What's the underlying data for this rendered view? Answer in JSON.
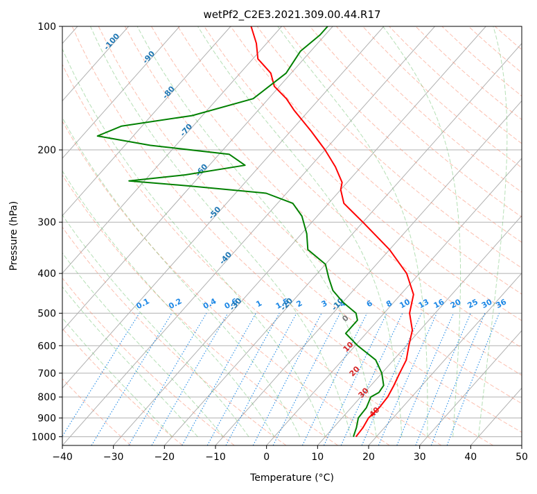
{
  "chart_data": {
    "type": "line",
    "subtype": "skew-T log-P diagram",
    "title": "wetPf2_C2E3.2021.309.00.44.R17",
    "xlabel": "Temperature (°C)",
    "ylabel": "Pressure (hPa)",
    "xlim": [
      -40,
      50
    ],
    "ylim": [
      1050,
      100
    ],
    "y_scale": "log",
    "x_ticks": [
      "−40",
      "−30",
      "−20",
      "−10",
      "0",
      "10",
      "20",
      "30",
      "40",
      "50"
    ],
    "y_ticks": [
      "1000",
      "900",
      "800",
      "700",
      "600",
      "500",
      "400",
      "300",
      "200",
      "100"
    ],
    "grid": true,
    "colors": {
      "temperature": "#ff0000",
      "dewpoint": "#008000",
      "isotherm_label": "#1f77b4",
      "mixing_ratio": "#1e88e5",
      "dry_adiabat": "#fa8a6e",
      "moist_adiabat": "#5cb85c",
      "theta_e_label": "#d62728",
      "grid": "#b0b0b0"
    },
    "series": [
      {
        "name": "temperature",
        "points": [
          {
            "p": 1000,
            "t": 16.0
          },
          {
            "p": 950,
            "t": 15.8
          },
          {
            "p": 900,
            "t": 15.2
          },
          {
            "p": 850,
            "t": 15.5
          },
          {
            "p": 800,
            "t": 15.3
          },
          {
            "p": 750,
            "t": 14.5
          },
          {
            "p": 700,
            "t": 13.5
          },
          {
            "p": 650,
            "t": 12.5
          },
          {
            "p": 600,
            "t": 10.5
          },
          {
            "p": 550,
            "t": 8.5
          },
          {
            "p": 500,
            "t": 5.0
          },
          {
            "p": 450,
            "t": 2.5
          },
          {
            "p": 400,
            "t": -2.5
          },
          {
            "p": 350,
            "t": -10.0
          },
          {
            "p": 300,
            "t": -20.0
          },
          {
            "p": 270,
            "t": -27.0
          },
          {
            "p": 250,
            "t": -30.0
          },
          {
            "p": 240,
            "t": -31.0
          },
          {
            "p": 220,
            "t": -35.0
          },
          {
            "p": 200,
            "t": -40.0
          },
          {
            "p": 180,
            "t": -46.0
          },
          {
            "p": 160,
            "t": -53.0
          },
          {
            "p": 150,
            "t": -56.5
          },
          {
            "p": 140,
            "t": -61.0
          },
          {
            "p": 130,
            "t": -64.0
          },
          {
            "p": 120,
            "t": -69.0
          },
          {
            "p": 110,
            "t": -72.0
          },
          {
            "p": 100,
            "t": -76.0
          }
        ]
      },
      {
        "name": "dewpoint",
        "points": [
          {
            "p": 1000,
            "t": 15.5
          },
          {
            "p": 950,
            "t": 14.5
          },
          {
            "p": 900,
            "t": 13.2
          },
          {
            "p": 850,
            "t": 13.0
          },
          {
            "p": 800,
            "t": 12.0
          },
          {
            "p": 780,
            "t": 12.8
          },
          {
            "p": 750,
            "t": 12.5
          },
          {
            "p": 700,
            "t": 10.0
          },
          {
            "p": 650,
            "t": 6.5
          },
          {
            "p": 600,
            "t": 0.5
          },
          {
            "p": 560,
            "t": -4.0
          },
          {
            "p": 520,
            "t": -4.0
          },
          {
            "p": 500,
            "t": -5.5
          },
          {
            "p": 470,
            "t": -10.0
          },
          {
            "p": 440,
            "t": -14.0
          },
          {
            "p": 410,
            "t": -17.0
          },
          {
            "p": 380,
            "t": -20.0
          },
          {
            "p": 350,
            "t": -26.0
          },
          {
            "p": 320,
            "t": -29.0
          },
          {
            "p": 290,
            "t": -33.0
          },
          {
            "p": 270,
            "t": -37.0
          },
          {
            "p": 255,
            "t": -44.0
          },
          {
            "p": 245,
            "t": -60.0
          },
          {
            "p": 238,
            "t": -73.0
          },
          {
            "p": 230,
            "t": -63.0
          },
          {
            "p": 218,
            "t": -53.0
          },
          {
            "p": 205,
            "t": -58.0
          },
          {
            "p": 195,
            "t": -75.0
          },
          {
            "p": 185,
            "t": -87.0
          },
          {
            "p": 175,
            "t": -84.0
          },
          {
            "p": 165,
            "t": -72.0
          },
          {
            "p": 150,
            "t": -63.0
          },
          {
            "p": 130,
            "t": -61.0
          },
          {
            "p": 115,
            "t": -62.0
          },
          {
            "p": 105,
            "t": -61.0
          },
          {
            "p": 100,
            "t": -61.0
          }
        ]
      }
    ],
    "isotherm_labels": [
      "-100",
      "-90",
      "-80",
      "-70",
      "-60",
      "-50",
      "-40",
      "-30",
      "-20",
      "-10"
    ],
    "mixing_ratio_labels": [
      "0.1",
      "0.2",
      "0.4",
      "0.6",
      "1",
      "1.5",
      "2",
      "3",
      "4",
      "6",
      "8",
      "10",
      "13",
      "16",
      "20",
      "25",
      "30",
      "36"
    ],
    "theta_e_labels": [
      "0",
      "10",
      "20",
      "30",
      "40"
    ]
  }
}
